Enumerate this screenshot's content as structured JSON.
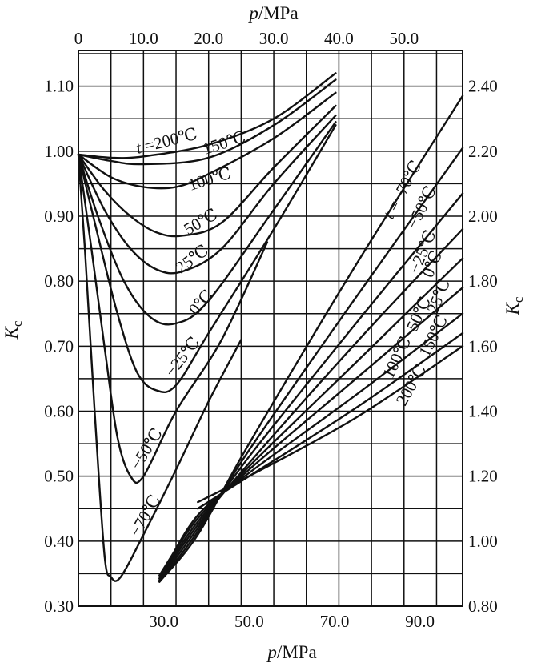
{
  "chart_data": {
    "type": "line",
    "top_axis": {
      "label": "p/MPa",
      "ticks": [
        {
          "v": 0,
          "t": "0"
        },
        {
          "v": 10,
          "t": "10.0"
        },
        {
          "v": 20,
          "t": "20.0"
        },
        {
          "v": 30,
          "t": "30.0"
        },
        {
          "v": 40,
          "t": "40.0"
        },
        {
          "v": 50,
          "t": "50.0"
        }
      ],
      "range": [
        0,
        59
      ]
    },
    "bottom_axis": {
      "label": "p/MPa",
      "ticks": [
        {
          "v": 30,
          "t": "30.0"
        },
        {
          "v": 50,
          "t": "50.0"
        },
        {
          "v": 70,
          "t": "70.0"
        },
        {
          "v": 90,
          "t": "90.0"
        }
      ],
      "range": [
        10,
        100
      ]
    },
    "left_axis": {
      "label": "Kc",
      "ticks": [
        {
          "v": 0.3,
          "t": "0.30"
        },
        {
          "v": 0.4,
          "t": "0.40"
        },
        {
          "v": 0.5,
          "t": "0.50"
        },
        {
          "v": 0.6,
          "t": "0.60"
        },
        {
          "v": 0.7,
          "t": "0.70"
        },
        {
          "v": 0.8,
          "t": "0.80"
        },
        {
          "v": 0.9,
          "t": "0.90"
        },
        {
          "v": 1.0,
          "t": "1.00"
        },
        {
          "v": 1.1,
          "t": "1.10"
        }
      ],
      "range": [
        0.3,
        1.155
      ]
    },
    "right_axis": {
      "label": "Kc",
      "ticks": [
        {
          "v": 0.8,
          "t": "0.80"
        },
        {
          "v": 1.0,
          "t": "1.00"
        },
        {
          "v": 1.2,
          "t": "1.20"
        },
        {
          "v": 1.4,
          "t": "1.40"
        },
        {
          "v": 1.6,
          "t": "1.60"
        },
        {
          "v": 1.8,
          "t": "1.80"
        },
        {
          "v": 2.0,
          "t": "2.00"
        },
        {
          "v": 2.2,
          "t": "2.20"
        },
        {
          "v": 2.4,
          "t": "2.40"
        }
      ],
      "range": [
        0.8,
        2.51
      ]
    },
    "grid": true,
    "series_low": [
      {
        "name": "t=200℃",
        "label": "t =200℃",
        "points": [
          [
            0,
            0.995
          ],
          [
            5,
            0.99
          ],
          [
            10,
            0.992
          ],
          [
            20,
            1.01
          ],
          [
            30,
            1.05
          ],
          [
            39.5,
            1.12
          ]
        ]
      },
      {
        "name": "150℃",
        "label": "150℃",
        "points": [
          [
            0,
            0.995
          ],
          [
            5,
            0.985
          ],
          [
            10,
            0.98
          ],
          [
            20,
            0.99
          ],
          [
            30,
            1.04
          ],
          [
            39.5,
            1.11
          ]
        ]
      },
      {
        "name": "100℃",
        "label": "100℃",
        "points": [
          [
            0,
            0.995
          ],
          [
            5,
            0.96
          ],
          [
            10,
            0.945
          ],
          [
            15,
            0.945
          ],
          [
            20,
            0.965
          ],
          [
            30,
            1.02
          ],
          [
            39.5,
            1.09
          ]
        ]
      },
      {
        "name": "50℃",
        "label": "50℃",
        "points": [
          [
            0,
            0.995
          ],
          [
            4,
            0.94
          ],
          [
            8,
            0.9
          ],
          [
            12,
            0.875
          ],
          [
            16,
            0.87
          ],
          [
            22,
            0.89
          ],
          [
            30,
            0.975
          ],
          [
            39.5,
            1.07
          ]
        ]
      },
      {
        "name": "25℃",
        "label": "25℃",
        "points": [
          [
            0,
            0.995
          ],
          [
            4,
            0.91
          ],
          [
            8,
            0.85
          ],
          [
            12,
            0.818
          ],
          [
            16,
            0.815
          ],
          [
            22,
            0.85
          ],
          [
            30,
            0.95
          ],
          [
            39.5,
            1.055
          ]
        ]
      },
      {
        "name": "0℃",
        "label": "0℃",
        "points": [
          [
            0,
            0.995
          ],
          [
            3,
            0.9
          ],
          [
            7,
            0.8
          ],
          [
            11,
            0.745
          ],
          [
            15,
            0.735
          ],
          [
            20,
            0.77
          ],
          [
            30,
            0.91
          ],
          [
            39.5,
            1.045
          ]
        ]
      },
      {
        "name": "-25℃",
        "label": "−25℃",
        "points": [
          [
            0,
            0.995
          ],
          [
            3,
            0.87
          ],
          [
            6,
            0.75
          ],
          [
            9,
            0.66
          ],
          [
            12,
            0.632
          ],
          [
            15,
            0.64
          ],
          [
            20,
            0.72
          ],
          [
            30,
            0.88
          ],
          [
            39.5,
            1.04
          ]
        ]
      },
      {
        "name": "-50℃",
        "label": "−50℃",
        "points": [
          [
            0,
            0.995
          ],
          [
            2,
            0.85
          ],
          [
            4,
            0.7
          ],
          [
            6,
            0.56
          ],
          [
            8,
            0.5
          ],
          [
            10,
            0.5
          ],
          [
            15,
            0.6
          ],
          [
            22,
            0.71
          ],
          [
            29,
            0.86
          ]
        ]
      },
      {
        "name": "-70℃",
        "label": "−70℃",
        "points": [
          [
            0,
            0.995
          ],
          [
            1,
            0.85
          ],
          [
            2.5,
            0.6
          ],
          [
            4,
            0.38
          ],
          [
            5,
            0.345
          ],
          [
            6.5,
            0.345
          ],
          [
            10,
            0.41
          ],
          [
            15,
            0.51
          ],
          [
            20,
            0.615
          ],
          [
            25,
            0.71
          ]
        ]
      }
    ],
    "series_high": [
      {
        "name": "t=-70℃",
        "label": "t =−70℃",
        "points": [
          [
            29,
            0.875
          ],
          [
            38,
            1.02
          ],
          [
            50,
            1.3
          ],
          [
            75,
            1.85
          ],
          [
            100,
            2.37
          ]
        ]
      },
      {
        "name": "-50℃",
        "label": "−50℃",
        "points": [
          [
            29,
            0.875
          ],
          [
            38,
            1.03
          ],
          [
            50,
            1.28
          ],
          [
            75,
            1.75
          ],
          [
            100,
            2.21
          ]
        ]
      },
      {
        "name": "-25℃",
        "label": "−25℃",
        "points": [
          [
            29,
            0.88
          ],
          [
            38,
            1.04
          ],
          [
            50,
            1.26
          ],
          [
            75,
            1.67
          ],
          [
            100,
            2.07
          ]
        ]
      },
      {
        "name": "0℃",
        "label": "0℃",
        "points": [
          [
            29,
            0.885
          ],
          [
            38,
            1.05
          ],
          [
            50,
            1.24
          ],
          [
            75,
            1.61
          ],
          [
            100,
            1.96
          ]
        ]
      },
      {
        "name": "25℃",
        "label": "25℃",
        "points": [
          [
            29,
            0.89
          ],
          [
            38,
            1.06
          ],
          [
            50,
            1.23
          ],
          [
            75,
            1.55
          ],
          [
            100,
            1.87
          ]
        ]
      },
      {
        "name": "50℃",
        "label": "50℃",
        "points": [
          [
            29,
            0.895
          ],
          [
            38,
            1.07
          ],
          [
            50,
            1.22
          ],
          [
            75,
            1.5
          ],
          [
            100,
            1.78
          ]
        ]
      },
      {
        "name": "100℃",
        "label": "100℃",
        "points": [
          [
            30,
            0.91
          ],
          [
            38,
            1.08
          ],
          [
            50,
            1.21
          ],
          [
            75,
            1.45
          ],
          [
            100,
            1.7
          ]
        ]
      },
      {
        "name": "150℃",
        "label": "150℃",
        "points": [
          [
            38,
            1.1
          ],
          [
            50,
            1.2
          ],
          [
            75,
            1.41
          ],
          [
            100,
            1.64
          ]
        ]
      },
      {
        "name": "200℃",
        "label": "200℃",
        "points": [
          [
            38,
            1.12
          ],
          [
            50,
            1.2
          ],
          [
            75,
            1.38
          ],
          [
            100,
            1.6
          ]
        ]
      }
    ]
  }
}
